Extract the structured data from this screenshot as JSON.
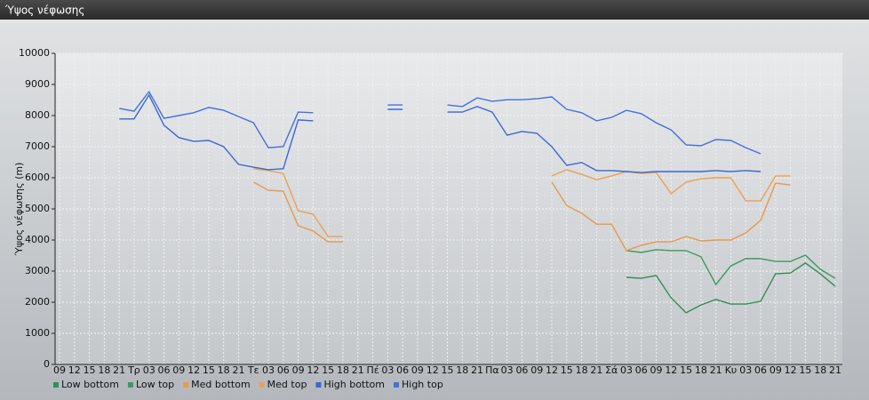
{
  "window_title": "Ύψος νέφωσης",
  "chart_data": {
    "type": "line",
    "y_label": "Ύψος νέφωσης (m)",
    "categories": [
      "09",
      "12",
      "15",
      "18",
      "21",
      "Τρ",
      "03",
      "06",
      "09",
      "12",
      "15",
      "18",
      "21",
      "Τε",
      "03",
      "06",
      "09",
      "12",
      "15",
      "18",
      "21",
      "Πέ",
      "03",
      "06",
      "09",
      "12",
      "15",
      "18",
      "21",
      "Πα",
      "03",
      "06",
      "09",
      "12",
      "15",
      "18",
      "21",
      "Σά",
      "03",
      "06",
      "09",
      "12",
      "15",
      "18",
      "21",
      "Κυ",
      "03",
      "06",
      "09",
      "12",
      "15",
      "18",
      "21"
    ],
    "ylim": [
      0,
      10000
    ],
    "yticks": [
      0,
      1000,
      2000,
      3000,
      4000,
      5000,
      6000,
      7000,
      8000,
      9000,
      10000
    ],
    "grid": true,
    "legend": "bottom",
    "series": [
      {
        "name": "Low bottom",
        "color": "#2f8f5a",
        "values": [
          null,
          null,
          null,
          null,
          null,
          null,
          null,
          null,
          null,
          null,
          null,
          null,
          null,
          null,
          null,
          null,
          null,
          null,
          null,
          null,
          null,
          null,
          null,
          null,
          null,
          null,
          null,
          null,
          null,
          null,
          null,
          null,
          null,
          null,
          null,
          null,
          null,
          null,
          2800,
          2770,
          2860,
          2140,
          1660,
          1910,
          2090,
          1940,
          1940,
          2030,
          2910,
          2940,
          3260,
          2910,
          2510
        ]
      },
      {
        "name": "Low top",
        "color": "#3a9a62",
        "values": [
          null,
          null,
          null,
          null,
          null,
          null,
          null,
          null,
          null,
          null,
          null,
          null,
          null,
          null,
          null,
          null,
          null,
          null,
          null,
          null,
          null,
          null,
          null,
          null,
          null,
          null,
          null,
          null,
          null,
          null,
          null,
          null,
          null,
          null,
          null,
          null,
          null,
          null,
          3660,
          3600,
          3690,
          3660,
          3660,
          3460,
          2570,
          3170,
          3400,
          3400,
          3310,
          3310,
          3510,
          3060,
          2770
        ]
      },
      {
        "name": "Med bottom",
        "color": "#e8994a",
        "values": [
          null,
          null,
          null,
          null,
          null,
          null,
          null,
          null,
          null,
          null,
          null,
          null,
          null,
          5860,
          5600,
          5570,
          4460,
          4290,
          3940,
          3940,
          null,
          null,
          null,
          null,
          null,
          null,
          null,
          null,
          null,
          null,
          null,
          null,
          null,
          5860,
          5110,
          4860,
          4510,
          4510,
          3660,
          3830,
          3940,
          3940,
          4110,
          3970,
          4000,
          4000,
          4230,
          4630,
          5830,
          5770,
          null,
          null,
          null
        ]
      },
      {
        "name": "Med top",
        "color": "#eea050",
        "values": [
          null,
          null,
          null,
          null,
          null,
          null,
          null,
          null,
          null,
          null,
          null,
          null,
          null,
          6290,
          6230,
          6140,
          4940,
          4830,
          4110,
          4110,
          null,
          null,
          null,
          null,
          null,
          null,
          null,
          null,
          null,
          null,
          null,
          null,
          null,
          6060,
          6260,
          6110,
          5940,
          6060,
          6200,
          6140,
          6170,
          5490,
          5860,
          5970,
          6000,
          6000,
          5260,
          5260,
          6060,
          6060,
          null,
          null,
          null
        ]
      },
      {
        "name": "High bottom",
        "color": "#3b68d0",
        "values": [
          null,
          null,
          null,
          null,
          7890,
          7890,
          8660,
          7690,
          7290,
          7170,
          7200,
          7000,
          6430,
          6340,
          6260,
          6290,
          7860,
          7830,
          null,
          null,
          null,
          null,
          8200,
          8200,
          null,
          null,
          8110,
          8110,
          8290,
          8110,
          7370,
          7490,
          7430,
          7000,
          6400,
          6490,
          6230,
          6230,
          6200,
          6170,
          6200,
          6200,
          6200,
          6200,
          6230,
          6200,
          6230,
          6200,
          null,
          null,
          null,
          null,
          null
        ]
      },
      {
        "name": "High top",
        "color": "#4472d8",
        "values": [
          null,
          null,
          null,
          null,
          8230,
          8140,
          8770,
          7910,
          8000,
          8090,
          8260,
          8170,
          7970,
          7770,
          6970,
          7000,
          8110,
          8090,
          null,
          null,
          null,
          null,
          8340,
          8340,
          null,
          null,
          8340,
          8290,
          8570,
          8460,
          8510,
          8510,
          8540,
          8600,
          8200,
          8090,
          7830,
          7940,
          8170,
          8060,
          7770,
          7540,
          7060,
          7030,
          7230,
          7200,
          6970,
          6770,
          null,
          null,
          null,
          null,
          null
        ]
      }
    ]
  }
}
